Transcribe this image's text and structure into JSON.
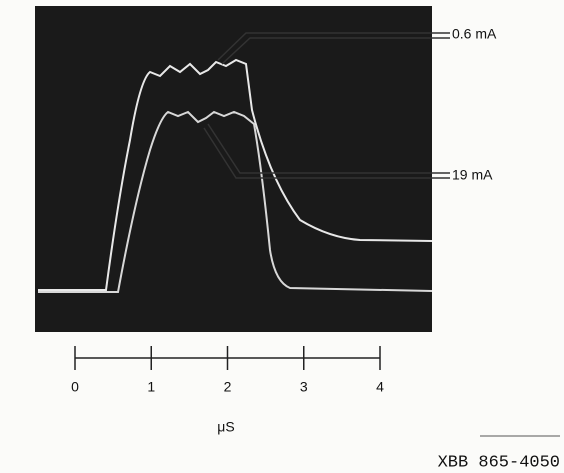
{
  "figure": {
    "annotations": [
      "0.6 mA",
      "19 mA"
    ],
    "scale": {
      "ticks": [
        0,
        1,
        2,
        3,
        4
      ],
      "unit": "μS"
    },
    "figure_id": "XBB 865-4050"
  }
}
